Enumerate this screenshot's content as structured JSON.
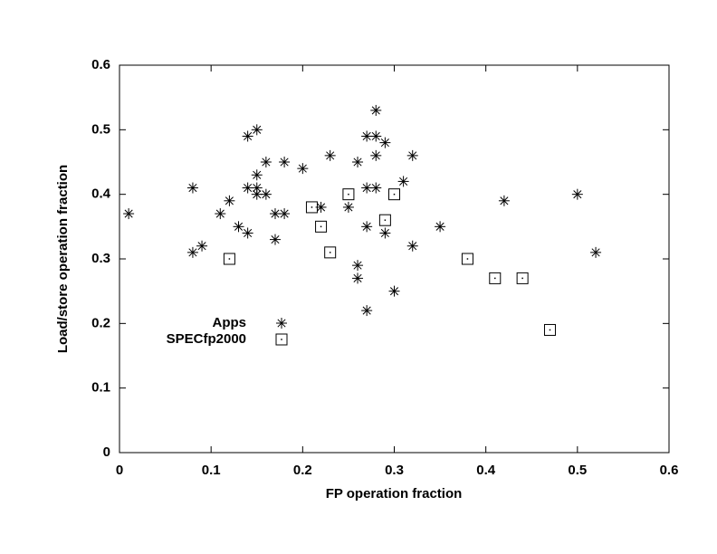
{
  "chart_data": {
    "type": "scatter",
    "x_label": "FP operation fraction",
    "y_label": "Load/store operation fraction",
    "xlim": [
      0,
      0.6
    ],
    "ylim": [
      0,
      0.6
    ],
    "xticks": [
      0,
      0.1,
      0.2,
      0.3,
      0.4,
      0.5,
      0.6
    ],
    "yticks": [
      0,
      0.1,
      0.2,
      0.3,
      0.4,
      0.5,
      0.6
    ],
    "legend": "left",
    "series": [
      {
        "name": "Apps",
        "color": "#000000",
        "marker": "asterisk",
        "x": [
          0.01,
          0.08,
          0.08,
          0.09,
          0.11,
          0.12,
          0.13,
          0.14,
          0.14,
          0.14,
          0.15,
          0.15,
          0.15,
          0.15,
          0.16,
          0.16,
          0.17,
          0.17,
          0.18,
          0.18,
          0.2,
          0.22,
          0.23,
          0.25,
          0.26,
          0.26,
          0.26,
          0.27,
          0.27,
          0.27,
          0.27,
          0.28,
          0.28,
          0.28,
          0.28,
          0.29,
          0.29,
          0.3,
          0.31,
          0.32,
          0.32,
          0.35,
          0.42,
          0.5,
          0.52
        ],
        "y": [
          0.37,
          0.41,
          0.31,
          0.32,
          0.37,
          0.39,
          0.35,
          0.49,
          0.41,
          0.34,
          0.5,
          0.43,
          0.41,
          0.4,
          0.45,
          0.4,
          0.37,
          0.33,
          0.45,
          0.37,
          0.44,
          0.38,
          0.46,
          0.38,
          0.45,
          0.29,
          0.27,
          0.49,
          0.41,
          0.35,
          0.22,
          0.53,
          0.49,
          0.46,
          0.41,
          0.48,
          0.34,
          0.25,
          0.42,
          0.46,
          0.32,
          0.35,
          0.39,
          0.4,
          0.31
        ]
      },
      {
        "name": "SPECfp2000",
        "color": "#000000",
        "marker": "square",
        "x": [
          0.12,
          0.21,
          0.22,
          0.23,
          0.25,
          0.29,
          0.3,
          0.38,
          0.41,
          0.44,
          0.47
        ],
        "y": [
          0.3,
          0.38,
          0.35,
          0.31,
          0.4,
          0.36,
          0.4,
          0.3,
          0.27,
          0.27,
          0.19
        ]
      }
    ]
  }
}
